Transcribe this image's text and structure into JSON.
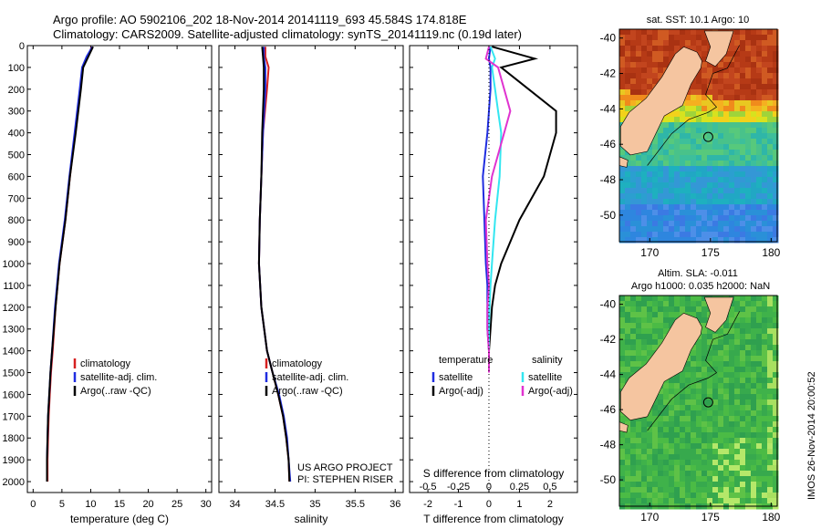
{
  "header": {
    "line1": "Argo profile: AO 5902106_202 18-Nov-2014 20141119_693 45.584S 174.818E",
    "line2": "Climatology: CARS2009. Satellite-adjusted climatology: synTS_20141119.nc (0.19d later)"
  },
  "colors": {
    "climatology": "#d62020",
    "satellite": "#1f2de0",
    "argo": "#000000",
    "sal_satellite": "#33e6f0",
    "sal_argo": "#e033d0"
  },
  "chart_data": [
    {
      "type": "line",
      "id": "temperature",
      "xlabel": "temperature (deg C)",
      "ylim": [
        0,
        2050
      ],
      "xlim": [
        -1,
        31
      ],
      "xticks": [
        0,
        5,
        10,
        15,
        20,
        25,
        30
      ],
      "yticks": [
        0,
        100,
        200,
        300,
        400,
        500,
        600,
        700,
        800,
        900,
        1000,
        1100,
        1200,
        1300,
        1400,
        1500,
        1600,
        1700,
        1800,
        1900,
        2000
      ],
      "legend": [
        "climatology",
        "satellite-adj. clim.",
        "Argo(..raw -QC)"
      ],
      "series": [
        {
          "name": "climatology",
          "color": "#d62020",
          "x": [
            10.2,
            9.5,
            8.6,
            8.2,
            7.3,
            6.4,
            5.6,
            4.6,
            3.9,
            3.4,
            3.1,
            2.9,
            2.7,
            2.6,
            2.5,
            2.5
          ],
          "y": [
            5,
            50,
            100,
            200,
            400,
            600,
            800,
            1000,
            1200,
            1400,
            1500,
            1600,
            1700,
            1800,
            1900,
            2000
          ]
        },
        {
          "name": "satellite-adj. clim.",
          "color": "#1f2de0",
          "x": [
            10.3,
            9.3,
            8.5,
            8.1,
            7.2,
            6.3,
            5.5,
            4.5,
            3.8,
            3.3,
            3.0,
            2.8,
            2.6,
            2.5,
            2.4,
            2.4
          ],
          "y": [
            5,
            50,
            100,
            200,
            400,
            600,
            800,
            1000,
            1200,
            1400,
            1500,
            1600,
            1700,
            1800,
            1900,
            2000
          ]
        },
        {
          "name": "Argo(..raw -QC)",
          "color": "#000000",
          "x": [
            10.4,
            9.6,
            8.7,
            8.3,
            7.4,
            6.4,
            5.6,
            4.6,
            3.9,
            3.3,
            3.0,
            2.8,
            2.6,
            2.5,
            2.4,
            2.4
          ],
          "y": [
            5,
            50,
            100,
            200,
            400,
            600,
            800,
            1000,
            1200,
            1400,
            1500,
            1600,
            1700,
            1800,
            1900,
            2000
          ]
        }
      ]
    },
    {
      "type": "line",
      "id": "salinity",
      "xlabel": "salinity",
      "ylim": [
        0,
        2050
      ],
      "xlim": [
        33.8,
        36.1
      ],
      "xticks": [
        34,
        34.5,
        35,
        35.5,
        36
      ],
      "legend": [
        "climatology",
        "satellite-adj. clim.",
        "Argo(..raw -QC)"
      ],
      "annotation": [
        "US ARGO PROJECT",
        "PI: STEPHEN RISER"
      ],
      "series": [
        {
          "name": "climatology",
          "color": "#d62020",
          "x": [
            34.38,
            34.38,
            34.42,
            34.4,
            34.35,
            34.33,
            34.31,
            34.3,
            34.33,
            34.4,
            34.47,
            34.54,
            34.6,
            34.64,
            34.67,
            34.68
          ],
          "y": [
            5,
            50,
            100,
            200,
            400,
            600,
            800,
            1000,
            1200,
            1400,
            1500,
            1600,
            1700,
            1800,
            1900,
            2000
          ]
        },
        {
          "name": "satellite-adj. clim.",
          "color": "#1f2de0",
          "x": [
            34.36,
            34.36,
            34.38,
            34.38,
            34.35,
            34.33,
            34.31,
            34.3,
            34.33,
            34.4,
            34.47,
            34.55,
            34.61,
            34.65,
            34.67,
            34.69
          ],
          "y": [
            5,
            50,
            100,
            200,
            400,
            600,
            800,
            1000,
            1200,
            1400,
            1500,
            1600,
            1700,
            1800,
            1900,
            2000
          ]
        },
        {
          "name": "Argo(..raw -QC)",
          "color": "#000000",
          "x": [
            34.34,
            34.35,
            34.36,
            34.36,
            34.34,
            34.33,
            34.31,
            34.3,
            34.33,
            34.4,
            34.47,
            34.54,
            34.6,
            34.64,
            34.67,
            34.68
          ],
          "y": [
            5,
            50,
            100,
            200,
            400,
            600,
            800,
            1000,
            1200,
            1400,
            1500,
            1600,
            1700,
            1800,
            1900,
            2000
          ]
        }
      ]
    },
    {
      "type": "line",
      "id": "difference",
      "xlabel": "T difference from climatology",
      "xlabel_top": "S difference from climatology",
      "ylim": [
        0,
        2050
      ],
      "xlim": [
        -2.6,
        2.9
      ],
      "xticks": [
        -2,
        -1,
        0,
        1,
        2
      ],
      "xticklabels": [
        "-2",
        "-1",
        "0",
        "1",
        "2"
      ],
      "sticks": [
        -0.5,
        -0.25,
        0,
        0.25,
        0.5
      ],
      "sticklabels": [
        "-0.5",
        "-0.25",
        "0",
        "0.25",
        "0.5"
      ],
      "legend_temperature_title": "temperature",
      "legend_salinity_title": "salinity",
      "legend_temperature": [
        "satellite",
        "Argo(-adj)"
      ],
      "legend_salinity": [
        "satellite",
        "Argo(-adj)"
      ],
      "series": [
        {
          "name": "T satellite",
          "color": "#1f2de0",
          "x": [
            0.05,
            0.0,
            0.05,
            0.05,
            0.0,
            -0.05,
            -0.2,
            -0.15,
            -0.1,
            -0.05,
            -0.05,
            -0.05,
            0.0,
            0.0
          ],
          "y": [
            5,
            60,
            100,
            200,
            300,
            400,
            600,
            800,
            1000,
            1100,
            1200,
            1300,
            1400,
            1500
          ]
        },
        {
          "name": "T Argo(-adj)",
          "color": "#000000",
          "x": [
            0.1,
            1.5,
            0.4,
            1.3,
            2.2,
            2.2,
            1.8,
            1.0,
            0.4,
            0.2,
            0.1,
            0.05,
            0.0,
            0.0
          ],
          "y": [
            5,
            60,
            100,
            200,
            300,
            400,
            600,
            800,
            1000,
            1100,
            1200,
            1300,
            1400,
            1500
          ]
        },
        {
          "name": "S satellite",
          "color": "#33e6f0",
          "x": [
            0.05,
            0.2,
            0.1,
            0.2,
            0.3,
            0.4,
            0.35,
            0.2,
            0.1,
            0.05,
            0.02,
            0.0,
            0.0,
            0.0
          ],
          "y": [
            5,
            60,
            100,
            200,
            300,
            400,
            600,
            800,
            1000,
            1100,
            1200,
            1300,
            1400,
            1500
          ]
        },
        {
          "name": "S Argo(-adj)",
          "color": "#e033d0",
          "x": [
            0.0,
            -0.1,
            0.3,
            0.5,
            0.7,
            0.5,
            0.1,
            -0.1,
            -0.05,
            0.0,
            -0.05,
            -0.05,
            0.0,
            0.0
          ],
          "y": [
            5,
            60,
            100,
            200,
            300,
            400,
            600,
            800,
            1000,
            1100,
            1200,
            1300,
            1400,
            1500
          ]
        }
      ]
    },
    {
      "type": "heatmap",
      "id": "sst_map",
      "title": "sat. SST: 10.1  Argo: 10",
      "xticks": [
        170,
        175,
        180
      ],
      "yticks": [
        -40,
        -42,
        -44,
        -46,
        -48,
        -50
      ],
      "xlim": [
        167.5,
        180.5
      ],
      "ylim": [
        -51.5,
        -39.5
      ],
      "argo_position": [
        174.818,
        -45.584
      ]
    },
    {
      "type": "heatmap",
      "id": "sla_map",
      "title_line1": "Altim. SLA: -0.011",
      "title_line2": "Argo h1000: 0.035 h2000: NaN",
      "xticks": [
        170,
        175,
        180
      ],
      "yticks": [
        -40,
        -42,
        -44,
        -46,
        -48,
        -50
      ],
      "xlim": [
        167.5,
        180.5
      ],
      "ylim": [
        -51.5,
        -39.5
      ],
      "argo_position": [
        174.818,
        -45.584
      ]
    }
  ],
  "side_tag": "IMOS 26-Nov-2014 20:00:52"
}
